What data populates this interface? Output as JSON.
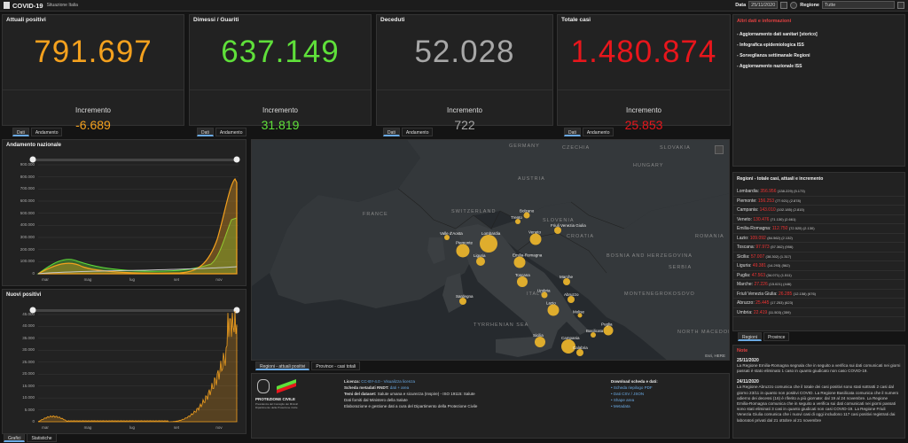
{
  "header": {
    "title": "COVID-19",
    "subtitle": "Situazione Italia",
    "date_label": "Data",
    "date_value": "25/11/2020",
    "region_label": "Regione",
    "region_value": "Tutte"
  },
  "kpis": [
    {
      "title": "Attuali positivi",
      "value": "791.697",
      "inc_label": "Incremento",
      "inc_value": "-6.689",
      "color": "#f4a11e"
    },
    {
      "title": "Dimessi / Guariti",
      "value": "637.149",
      "inc_label": "Incremento",
      "inc_value": "31.819",
      "color": "#5fe03a"
    },
    {
      "title": "Deceduti",
      "value": "52.028",
      "inc_label": "Incremento",
      "inc_value": "722",
      "color": "#a7a7a7"
    },
    {
      "title": "Totale casi",
      "value": "1.480.874",
      "inc_label": "Incremento",
      "inc_value": "25.853",
      "color": "#e8161c"
    }
  ],
  "kpi_tabs": {
    "dati": "Dati",
    "andamento": "Andamento"
  },
  "links": {
    "title": "Altri dati e informazioni",
    "items": [
      "Aggiornamento dati sanitari [storico]",
      "Infografica epidemiologica ISS",
      "Sorveglianza settimanale Regioni",
      "Aggiornamento nazionale ISS"
    ]
  },
  "chart1": {
    "title": "Andamento nazionale",
    "y_ticks": [
      "900.000",
      "800.000",
      "700.000",
      "600.000",
      "500.000",
      "400.000",
      "300.000",
      "200.000",
      "100.000",
      "0"
    ],
    "x_ticks": [
      "mar",
      "mag",
      "lug",
      "set",
      "nov"
    ]
  },
  "chart2": {
    "title": "Nuovi positivi",
    "y_ticks": [
      "45.000",
      "40.000",
      "35.000",
      "30.000",
      "25.000",
      "20.000",
      "15.000",
      "10.000",
      "5.000",
      "0"
    ],
    "x_ticks": [
      "mar",
      "mag",
      "lug",
      "set",
      "nov"
    ]
  },
  "bottom_tabs": {
    "grafici": "Grafici",
    "statistiche": "Statistiche"
  },
  "map": {
    "country_labels": [
      {
        "text": "FRANCE"
      },
      {
        "text": "SWITZERLAND"
      },
      {
        "text": "AUSTRIA"
      },
      {
        "text": "SLOVENIA"
      },
      {
        "text": "CROATIA"
      },
      {
        "text": "BOSNIA AND HERZEGOVINA"
      },
      {
        "text": "SERBIA"
      },
      {
        "text": "MONTENEGRO"
      },
      {
        "text": "KOSOVO"
      },
      {
        "text": "NORTH MACEDONIA"
      },
      {
        "text": "HUNGARY"
      },
      {
        "text": "ROMANIA"
      },
      {
        "text": "SLOVAKIA"
      },
      {
        "text": "GERMANY"
      },
      {
        "text": "CZECHIA"
      },
      {
        "text": "TYRRHENIAN SEA"
      },
      {
        "text": "ITALY"
      }
    ],
    "bubbles": [
      {
        "region": "Lombardia",
        "size": 18
      },
      {
        "region": "Piemonte",
        "size": 13
      },
      {
        "region": "Veneto",
        "size": 11
      },
      {
        "region": "Emilia-Romagna",
        "size": 11
      },
      {
        "region": "Lazio",
        "size": 11
      },
      {
        "region": "Campania",
        "size": 14
      },
      {
        "region": "Toscana",
        "size": 10
      },
      {
        "region": "Liguria",
        "size": 8
      },
      {
        "region": "Puglia",
        "size": 9
      },
      {
        "region": "Sicilia",
        "size": 10
      },
      {
        "region": "Marche",
        "size": 6
      },
      {
        "region": "Friuli Venezia Giulia",
        "size": 6
      },
      {
        "region": "Abruzzo",
        "size": 6
      },
      {
        "region": "Sardegna",
        "size": 6
      },
      {
        "region": "Calabria",
        "size": 6
      },
      {
        "region": "Umbria",
        "size": 5
      },
      {
        "region": "Valle d'Aosta",
        "size": 4
      },
      {
        "region": "Trento",
        "size": 4
      },
      {
        "region": "Bolzano",
        "size": 5
      },
      {
        "region": "Basilicata",
        "size": 4
      },
      {
        "region": "Molise",
        "size": 3
      }
    ],
    "attribution": "Esri, HERE"
  },
  "map_tabs": {
    "regioni": "Regioni - attuali positivi",
    "province": "Province - casi totali"
  },
  "regions": {
    "title": "Regioni - totale casi, attuali e incremento",
    "rows": [
      {
        "name": "Lombardia:",
        "value": "356.956",
        "extra": "(138.229) (5.173)"
      },
      {
        "name": "Piemonte:",
        "value": "156.253",
        "extra": "(77.921) (2.878)"
      },
      {
        "name": "Campania:",
        "value": "143.010",
        "extra": "(102.185) (2.815)"
      },
      {
        "name": "Veneto:",
        "value": "130.476",
        "extra": "(71.130) (2.661)"
      },
      {
        "name": "Emilia-Romagna:",
        "value": "112.750",
        "extra": "(72.525) (2.130)"
      },
      {
        "name": "Lazio:",
        "value": "109.092",
        "extra": "(84.562) (2.132)"
      },
      {
        "name": "Toscana:",
        "value": "97.973",
        "extra": "(57.362) (956)"
      },
      {
        "name": "Sicilia:",
        "value": "57.007",
        "extra": "(38.302) (1.317)"
      },
      {
        "name": "Liguria:",
        "value": "49.381",
        "extra": "(14.293) (562)"
      },
      {
        "name": "Puglia:",
        "value": "47.563",
        "extra": "(34.071) (1.511)"
      },
      {
        "name": "Marche:",
        "value": "27.226",
        "extra": "(15.021) (446)"
      },
      {
        "name": "Friuli Venezia Giulia:",
        "value": "26.285",
        "extra": "(12.158) (676)"
      },
      {
        "name": "Abruzzo:",
        "value": "25.445",
        "extra": "(17.253) (623)"
      },
      {
        "name": "Umbria:",
        "value": "22.419",
        "extra": "(11.503) (359)"
      }
    ]
  },
  "region_tabs": {
    "regioni": "Regioni",
    "province": "Province"
  },
  "notes": {
    "title": "Note",
    "entries": [
      {
        "date": "25/11/2020",
        "text": "La Regione Emilia-Romagna segnala che in seguito a verifica sui dati comunicati nei giorni passati è stato eliminato 1 caso in quanto giudicato non caso COVID-19."
      },
      {
        "date": "24/11/2020",
        "text": "La Regione Abruzzo comunica che il totale dei casi positivi sono stati sottratti 2 casi dal giorno 23/11 in quanto non positivi COVID. La Regione Basilicata comunica che il numero odierno dei decessi (16) è riferito a più giornate: dal 19 al 24 novembre. La Regione Emilia-Romagna comunica che in seguito a verifica sui dati comunicati nei giorni passati sono stati eliminati 3 casi in quanto giudicati non casi COVID-19. La Regione Friuli Venezia Giulia comunica che i nuovi casi di oggi includono 117 casi positivi registrati dai laboratori privati dal 21 ottobre al 21 novembre"
      }
    ]
  },
  "footer": {
    "logo_text": "PROTEZIONE CIVILE",
    "logo_sub": "Presidenza del Consiglio dei Ministri Dipartimento della Protezione Civile",
    "lines": [
      {
        "label": "Licenza:",
        "text": "CC-BY-4.0 - Visualizza licenza"
      },
      {
        "label": "Scheda metadati RNDT:",
        "text": "dati + area"
      },
      {
        "label": "Temi del dataset:",
        "text": "Salute umana e sicurezza (Inspire) - ISO 19115: Salute"
      },
      {
        "label": "",
        "text": "Dati forniti dal Ministero della Salute"
      },
      {
        "label": "",
        "text": "Elaborazione e gestione dati a cura del Dipartimento della Protezione Civile"
      }
    ],
    "download_title": "Download scheda e dati:",
    "download_items": [
      "Scheda riepilogo PDF",
      "Dati CSV / JSON",
      "Shape area",
      "Metadata"
    ]
  },
  "colors": {
    "orange": "#f4a11e",
    "green": "#5fe03a",
    "grey": "#a7a7a7",
    "red": "#e8161c",
    "bubble": "#f2b92b",
    "tab_active": "#6aa9e3"
  }
}
